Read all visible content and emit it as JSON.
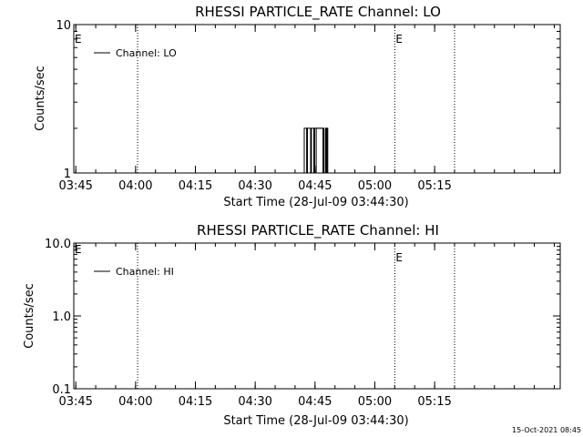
{
  "chart_data": [
    {
      "type": "line",
      "title": "RHESSI PARTICLE_RATE Channel: LO",
      "xlabel": "Start Time (28-Jul-09 03:44:30)",
      "ylabel": "Counts/sec",
      "x_ticks": [
        "03:45",
        "04:00",
        "04:15",
        "04:30",
        "04:45",
        "05:00",
        "05:15"
      ],
      "x_range_minutes": [
        0,
        122
      ],
      "y_scale": "log",
      "y_range": [
        1,
        10
      ],
      "y_ticks": [
        "1",
        "10"
      ],
      "legend": "Channel: LO",
      "legend_position": "top-left",
      "event_markers": [
        {
          "minute": 16,
          "style": "dotted",
          "label": ""
        },
        {
          "minute": 80.5,
          "style": "dotted",
          "label": "E"
        },
        {
          "minute": 95.5,
          "style": "dotted",
          "label": ""
        }
      ],
      "left_flag": "E",
      "series": [
        {
          "x": [
            57.4,
            57.8,
            58.2,
            58.6,
            59.2,
            59.6,
            60.0,
            60.4,
            60.8,
            61.4,
            61.8,
            62.3,
            62.7,
            63.1,
            63.5
          ],
          "y": [
            1,
            2,
            2,
            1,
            1,
            2,
            2,
            1,
            2,
            2,
            2,
            2,
            1,
            2,
            1
          ]
        },
        {
          "x": [
            57.6,
            58.0,
            58.4,
            58.8,
            59.4,
            59.8,
            60.2,
            60.6,
            61.0,
            61.6,
            62.0,
            62.5,
            62.9,
            63.3,
            63.7
          ],
          "y": [
            1,
            1,
            2,
            2,
            1,
            1,
            2,
            2,
            2,
            2,
            2,
            1,
            1,
            2,
            1
          ]
        }
      ]
    },
    {
      "type": "line",
      "title": "RHESSI PARTICLE_RATE Channel: HI",
      "xlabel": "Start Time (28-Jul-09 03:44:30)",
      "ylabel": "Counts/sec",
      "x_ticks": [
        "03:45",
        "04:00",
        "04:15",
        "04:30",
        "04:45",
        "05:00",
        "05:15"
      ],
      "x_range_minutes": [
        0,
        122
      ],
      "y_scale": "log",
      "y_range": [
        0.1,
        10
      ],
      "y_ticks": [
        "0.1",
        "1.0",
        "10.0"
      ],
      "legend": "Channel: HI",
      "legend_position": "top-left",
      "event_markers": [
        {
          "minute": 16,
          "style": "dotted",
          "label": ""
        },
        {
          "minute": 80.5,
          "style": "dotted",
          "label": "E"
        },
        {
          "minute": 95.5,
          "style": "dotted",
          "label": ""
        }
      ],
      "left_flag": "E",
      "series": []
    }
  ],
  "footer": {
    "timestamp": "15-Oct-2021 08:45"
  }
}
